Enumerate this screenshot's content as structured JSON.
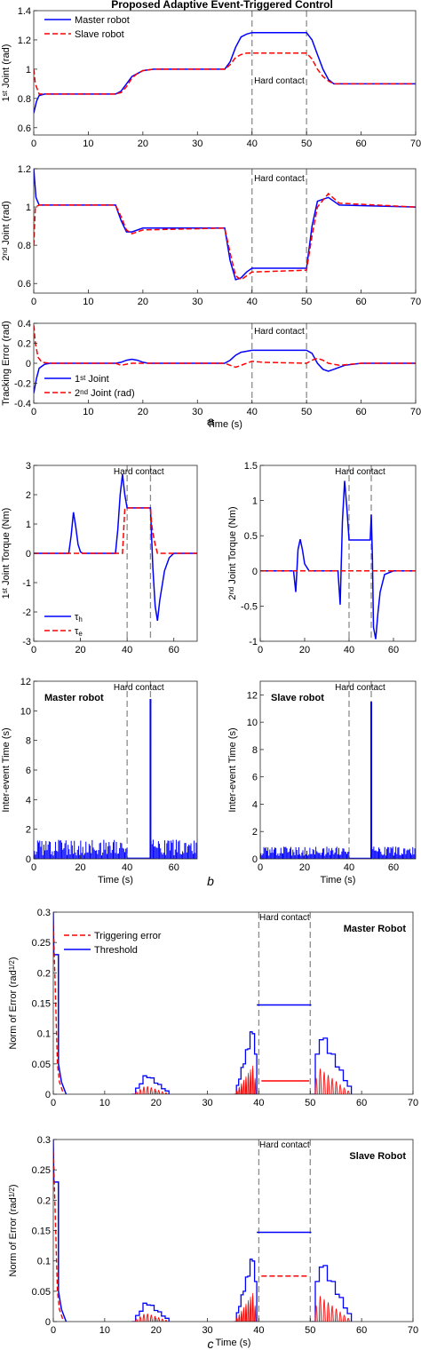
{
  "figure": {
    "title": "Proposed Adaptive Event-Triggered Control",
    "annotation": "Hard contact",
    "sublabels": [
      "a",
      "b",
      "c"
    ]
  },
  "chart_data": [
    {
      "id": "a1",
      "type": "line",
      "ylabel": "1st Joint (rad)",
      "ylabel_parts": [
        "1",
        "st",
        " Joint (rad)"
      ],
      "xlabel": "",
      "xlim": [
        0,
        70
      ],
      "ylim": [
        0.55,
        1.4
      ],
      "xticks": [
        0,
        10,
        20,
        30,
        40,
        50,
        60,
        70
      ],
      "yticks": [
        0.6,
        0.8,
        1.0,
        1.2,
        1.4
      ],
      "ytick_labels": [
        "0.6",
        "0.8",
        "1",
        "1.2",
        "1.4"
      ],
      "legend": "top-left",
      "series": [
        {
          "name": "Master robot",
          "color": "#0000ff",
          "dash": "solid",
          "x": [
            0,
            0.5,
            1,
            2,
            15,
            16,
            17,
            18,
            19,
            20,
            22,
            35,
            36,
            37,
            38,
            39,
            40,
            50,
            51,
            52,
            53,
            54,
            55,
            60,
            70
          ],
          "y": [
            0.7,
            0.78,
            0.82,
            0.83,
            0.83,
            0.85,
            0.9,
            0.95,
            0.97,
            0.99,
            1.0,
            1.0,
            1.05,
            1.15,
            1.22,
            1.24,
            1.25,
            1.25,
            1.2,
            1.1,
            1.0,
            0.93,
            0.9,
            0.9,
            0.9
          ]
        },
        {
          "name": "Slave robot",
          "color": "#ff0000",
          "dash": "dashed",
          "x": [
            0,
            0.3,
            1,
            2,
            15,
            16,
            17,
            18,
            19,
            20,
            22,
            35,
            36,
            37,
            38,
            39,
            40,
            50,
            51,
            52,
            53,
            54,
            55,
            60,
            70
          ],
          "y": [
            1.0,
            0.9,
            0.83,
            0.83,
            0.83,
            0.84,
            0.88,
            0.94,
            0.97,
            0.99,
            1.0,
            1.0,
            1.03,
            1.08,
            1.1,
            1.11,
            1.11,
            1.11,
            1.07,
            1.0,
            0.95,
            0.92,
            0.9,
            0.9,
            0.9
          ]
        }
      ]
    },
    {
      "id": "a2",
      "type": "line",
      "ylabel": "2nd Joint (rad)",
      "ylabel_parts": [
        "2",
        "nd",
        " Joint (rad)"
      ],
      "xlabel": "",
      "xlim": [
        0,
        70
      ],
      "ylim": [
        0.55,
        1.2
      ],
      "xticks": [
        0,
        10,
        20,
        30,
        40,
        50,
        60,
        70
      ],
      "yticks": [
        0.6,
        0.8,
        1.0,
        1.2
      ],
      "ytick_labels": [
        "0.6",
        "0.8",
        "1",
        "1.2"
      ],
      "legend": "none",
      "series": [
        {
          "name": "Master robot",
          "color": "#0000ff",
          "dash": "solid",
          "x": [
            0,
            0.4,
            1,
            15,
            16,
            17,
            18,
            20,
            35,
            36,
            37,
            38,
            39,
            40,
            50,
            51,
            52,
            54,
            56,
            70
          ],
          "y": [
            1.2,
            1.05,
            1.01,
            1.01,
            0.93,
            0.87,
            0.87,
            0.89,
            0.89,
            0.72,
            0.62,
            0.63,
            0.66,
            0.68,
            0.68,
            0.9,
            1.03,
            1.05,
            1.01,
            1.0
          ]
        },
        {
          "name": "Slave robot",
          "color": "#ff0000",
          "dash": "dashed",
          "x": [
            0,
            0.3,
            1,
            15,
            16,
            17,
            18,
            20,
            35,
            36,
            37,
            38,
            39,
            40,
            50,
            51,
            52,
            54,
            56,
            70
          ],
          "y": [
            0.8,
            1.0,
            1.01,
            1.01,
            0.95,
            0.88,
            0.86,
            0.88,
            0.89,
            0.76,
            0.64,
            0.62,
            0.64,
            0.66,
            0.67,
            0.85,
            1.0,
            1.07,
            1.02,
            1.0
          ]
        }
      ]
    },
    {
      "id": "a3",
      "type": "line",
      "ylabel": "Tracking Error (rad)",
      "xlabel": "Time (s)",
      "xlim": [
        0,
        70
      ],
      "ylim": [
        -0.4,
        0.4
      ],
      "xticks": [
        0,
        10,
        20,
        30,
        40,
        50,
        60,
        70
      ],
      "yticks": [
        -0.4,
        -0.2,
        0,
        0.2,
        0.4
      ],
      "ytick_labels": [
        "-0.4",
        "-0.2",
        "0",
        "0.2",
        "0.4"
      ],
      "legend": "bottom-left",
      "series": [
        {
          "name": "1st Joint",
          "name_parts": [
            "1",
            "st",
            " Joint"
          ],
          "color": "#0000ff",
          "dash": "solid",
          "x": [
            0,
            0.5,
            1,
            2,
            3,
            15,
            16,
            17,
            18,
            19,
            20,
            21,
            35,
            36,
            37,
            38,
            39,
            40,
            50,
            51,
            52,
            53,
            54,
            55,
            57,
            60,
            70
          ],
          "y": [
            -0.3,
            -0.15,
            -0.05,
            -0.01,
            0.0,
            0.0,
            0.01,
            0.03,
            0.04,
            0.03,
            0.01,
            0.0,
            0.0,
            0.03,
            0.08,
            0.11,
            0.12,
            0.13,
            0.13,
            0.1,
            0.0,
            -0.06,
            -0.08,
            -0.06,
            -0.02,
            0.0,
            0.0
          ]
        },
        {
          "name": "2nd Joint (rad)",
          "name_parts": [
            "2",
            "nd",
            " Joint (rad)"
          ],
          "color": "#ff0000",
          "dash": "dashed",
          "x": [
            0,
            0.3,
            0.8,
            1.5,
            3,
            15,
            16,
            17,
            18,
            20,
            35,
            36,
            37,
            38,
            39,
            40,
            42,
            50,
            51,
            52,
            53,
            54,
            56,
            60,
            70
          ],
          "y": [
            0.38,
            0.2,
            0.06,
            0.01,
            0.0,
            0.0,
            -0.02,
            -0.01,
            0.0,
            0.0,
            0.0,
            -0.02,
            -0.04,
            -0.02,
            0.0,
            0.02,
            0.01,
            0.0,
            0.03,
            0.05,
            0.03,
            0.0,
            -0.02,
            0.0,
            0.0
          ]
        }
      ]
    },
    {
      "id": "b1",
      "type": "line",
      "ylabel": "1st Joint Torque (Nm)",
      "ylabel_parts": [
        "1",
        "st",
        " Joint Torque (Nm)"
      ],
      "xlabel": "",
      "xlim": [
        0,
        70
      ],
      "ylim": [
        -3,
        3
      ],
      "xticks": [
        0,
        20,
        40,
        60
      ],
      "yticks": [
        -3,
        -2,
        -1,
        0,
        1,
        2,
        3
      ],
      "ytick_labels": [
        "-3",
        "-2",
        "-1",
        "0",
        "1",
        "2",
        "3"
      ],
      "legend": "bottom-left",
      "series": [
        {
          "name": "τh",
          "name_parts": [
            "τ",
            "h"
          ],
          "color": "#0000ff",
          "dash": "solid",
          "x": [
            0,
            15,
            16,
            17,
            18,
            19,
            20,
            21,
            35,
            36,
            37,
            38,
            39,
            40,
            50,
            51,
            52,
            53,
            54,
            56,
            58,
            60,
            70
          ],
          "y": [
            0,
            0,
            0.6,
            1.4,
            0.9,
            0.3,
            0.05,
            0,
            0,
            0.8,
            2.0,
            2.7,
            2.0,
            1.55,
            1.55,
            -0.5,
            -1.8,
            -2.3,
            -1.6,
            -0.6,
            -0.15,
            0,
            0
          ]
        },
        {
          "name": "τe",
          "name_parts": [
            "τ",
            "e"
          ],
          "color": "#ff0000",
          "dash": "dashed",
          "x": [
            0,
            38,
            39,
            40,
            50,
            50.5,
            51,
            52,
            53,
            54,
            70
          ],
          "y": [
            0,
            0,
            1.5,
            1.55,
            1.55,
            1.0,
            0.7,
            0.3,
            0,
            0,
            0
          ]
        }
      ]
    },
    {
      "id": "b2",
      "type": "line",
      "ylabel": "2nd Joint Torque (Nm)",
      "ylabel_parts": [
        "2",
        "nd",
        " Joint Torque (Nm)"
      ],
      "xlabel": "",
      "xlim": [
        0,
        70
      ],
      "ylim": [
        -1,
        1.5
      ],
      "xticks": [
        0,
        20,
        40,
        60
      ],
      "yticks": [
        -1,
        -0.5,
        0,
        0.5,
        1,
        1.5
      ],
      "ytick_labels": [
        "-1",
        "-0.5",
        "0",
        "0.5",
        "1",
        "1.5"
      ],
      "legend": "none",
      "series": [
        {
          "name": "τh",
          "color": "#0000ff",
          "dash": "solid",
          "x": [
            0,
            15,
            16,
            17,
            18,
            19,
            20,
            22,
            35,
            36,
            37,
            38,
            39,
            40,
            49.5,
            50,
            50.5,
            51,
            52,
            53,
            54,
            56,
            60,
            70
          ],
          "y": [
            0,
            0,
            -0.3,
            0.3,
            0.45,
            0.3,
            0.1,
            0,
            0,
            -0.48,
            0.7,
            1.28,
            0.9,
            0.44,
            0.44,
            0.8,
            0.2,
            -0.8,
            -0.97,
            -0.6,
            -0.3,
            -0.05,
            0,
            0
          ]
        },
        {
          "name": "τe",
          "color": "#ff0000",
          "dash": "dashed",
          "x": [
            0,
            70
          ],
          "y": [
            0,
            0
          ]
        }
      ]
    },
    {
      "id": "b3",
      "type": "bar",
      "ylabel": "Inter-event Time (s)",
      "xlabel": "Time (s)",
      "xlim": [
        0,
        70
      ],
      "ylim": [
        0,
        12
      ],
      "xticks": [
        0,
        20,
        40,
        60
      ],
      "yticks": [
        0,
        2,
        4,
        6,
        8,
        10,
        12
      ],
      "ytick_labels": [
        "0",
        "2",
        "4",
        "6",
        "8",
        "10",
        "12"
      ],
      "panel_label": "Master robot",
      "bars": {
        "spike_at": 50,
        "spike_height": 10.8,
        "flat_from": 40,
        "flat_to": 50,
        "baseline_max": 1.3,
        "color": "#0000ff"
      }
    },
    {
      "id": "b4",
      "type": "bar",
      "ylabel": "Inter-event Time (s)",
      "xlabel": "Time (s)",
      "xlim": [
        0,
        70
      ],
      "ylim": [
        0,
        13
      ],
      "xticks": [
        0,
        20,
        40,
        60
      ],
      "yticks": [
        0,
        2,
        4,
        6,
        8,
        10,
        12
      ],
      "ytick_labels": [
        "0",
        "2",
        "4",
        "6",
        "8",
        "10",
        "12"
      ],
      "panel_label": "Slave robot",
      "bars": {
        "spike_at": 50,
        "spike_height": 11.5,
        "flat_from": 40,
        "flat_to": 50,
        "baseline_max": 0.9,
        "color": "#0000ff"
      }
    },
    {
      "id": "c1",
      "type": "line",
      "ylabel": "Norm of Error (rad1/2)",
      "ylabel_parts": [
        "Norm of Error (rad",
        "1/2",
        ")"
      ],
      "xlabel": "",
      "xlim": [
        0,
        70
      ],
      "ylim": [
        0,
        0.3
      ],
      "xticks": [
        0,
        10,
        20,
        30,
        40,
        50,
        60,
        70
      ],
      "yticks": [
        0,
        0.05,
        0.1,
        0.15,
        0.2,
        0.25,
        0.3
      ],
      "ytick_labels": [
        "0",
        "0.05",
        "0.1",
        "0.15",
        "0.2",
        "0.25",
        "0.3"
      ],
      "legend": "top-left",
      "panel_label": "Master Robot",
      "series": [
        {
          "name": "Triggering error",
          "color": "#ff0000",
          "dash": "dashed"
        },
        {
          "name": "Threshold",
          "color": "#0000ff",
          "dash": "solid"
        }
      ],
      "threshold": {
        "initial": 0.23,
        "plateau": 0.147,
        "error_plateau": 0.022,
        "peak1": 0.035,
        "peak2": 0.12,
        "peak3": 0.11
      }
    },
    {
      "id": "c2",
      "type": "line",
      "ylabel": "Norm of Error (rad1/2)",
      "ylabel_parts": [
        "Norm of Error (rad",
        "1/2",
        ")"
      ],
      "xlabel": "Time (s)",
      "xlim": [
        0,
        70
      ],
      "ylim": [
        0,
        0.3
      ],
      "xticks": [
        0,
        10,
        20,
        30,
        40,
        50,
        60,
        70
      ],
      "yticks": [
        0,
        0.05,
        0.1,
        0.15,
        0.2,
        0.25,
        0.3
      ],
      "ytick_labels": [
        "0",
        "0.05",
        "0.1",
        "0.15",
        "0.2",
        "0.25",
        "0.3"
      ],
      "legend": "none",
      "panel_label": "Slave Robot",
      "series": [
        {
          "name": "Triggering error",
          "color": "#ff0000",
          "dash": "dashed"
        },
        {
          "name": "Threshold",
          "color": "#0000ff",
          "dash": "solid"
        }
      ],
      "threshold": {
        "initial": 0.23,
        "plateau": 0.147,
        "error_plateau": 0.075,
        "peak1": 0.035,
        "peak2": 0.12,
        "peak3": 0.11
      }
    }
  ]
}
